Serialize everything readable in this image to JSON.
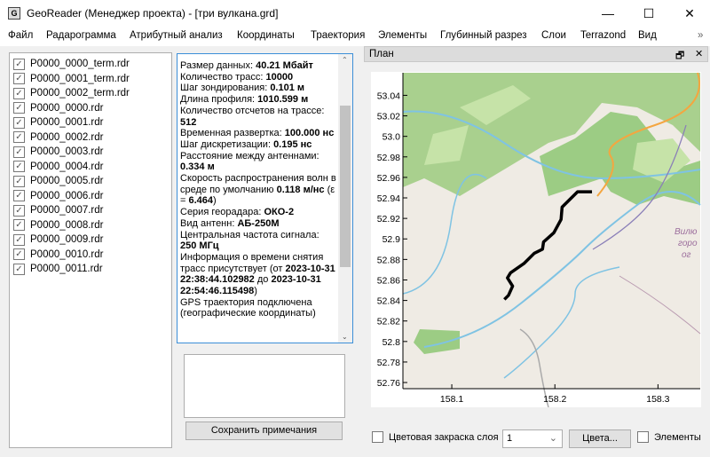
{
  "window": {
    "title": "GeoReader (Менеджер проекта) - [три вулкана.grd]",
    "icon": "G",
    "minimize": "—",
    "maximize": "☐",
    "close": "✕"
  },
  "menu": [
    "Файл",
    "Радарограмма",
    "Атрибутный анализ",
    "Координаты",
    "Траектория",
    "Элементы",
    "Глубинный разрез",
    "Слои",
    "Terrazond",
    "Вид"
  ],
  "menu_overflow": "»",
  "files": [
    "P0000_0000_term.rdr",
    "P0000_0001_term.rdr",
    "P0000_0002_term.rdr",
    "P0000_0000.rdr",
    "P0000_0001.rdr",
    "P0000_0002.rdr",
    "P0000_0003.rdr",
    "P0000_0004.rdr",
    "P0000_0005.rdr",
    "P0000_0006.rdr",
    "P0000_0007.rdr",
    "P0000_0008.rdr",
    "P0000_0009.rdr",
    "P0000_0010.rdr",
    "P0000_0011.rdr"
  ],
  "files_checked": true,
  "info": [
    {
      "t": "Размер данных: ",
      "b": "40.21 Мбайт"
    },
    {
      "t": "Количество трасс: ",
      "b": "10000"
    },
    {
      "t": "Шаг зондирования: ",
      "b": "0.101 м"
    },
    {
      "t": "Длина профиля: ",
      "b": "1010.599 м"
    },
    {
      "t": "Количество отсчетов на трассе: ",
      "b": "512"
    },
    {
      "t": "Временная развертка: ",
      "b": "100.000 нс"
    },
    {
      "t": "Шаг дискретизации: ",
      "b": "0.195 нс"
    },
    {
      "t": "Расстояние между антеннами: ",
      "b": "0.334 м"
    },
    {
      "t": "Скорость распространения волн в среде по умолчанию ",
      "b": "0.118 м/нс",
      "t2": " (ε = ",
      "b2": "6.464",
      "t3": ")"
    },
    {
      "t": "Серия георадара: ",
      "b": "ОКО-2"
    },
    {
      "t": "Вид антенн: ",
      "b": "АБ-250М"
    },
    {
      "t": "Центральная частота сигнала: ",
      "b": "250 МГц"
    },
    {
      "t": "Информация о времени снятия трасс присутствует (от ",
      "b": "2023-10-31 22:38:44.102982",
      "t2": " до ",
      "b2": "2023-10-31 22:54:46.115498",
      "t3": ")"
    },
    {
      "t": "GPS траектория подключена (географические координаты)"
    }
  ],
  "notes": {
    "value": ""
  },
  "save_button": "Сохранить примечания",
  "plan": {
    "title": "План",
    "restore_icon": "🗗",
    "close_icon": "✕",
    "map_label": [
      "Вилю",
      "горо",
      "ог"
    ],
    "x_ticks": [
      "158.1",
      "158.2",
      "158.3"
    ],
    "y_ticks": [
      "53.04",
      "53.02",
      "53.0",
      "52.98",
      "52.96",
      "52.94",
      "52.92",
      "52.9",
      "52.88",
      "52.86",
      "52.84",
      "52.82",
      "52.8",
      "52.78",
      "52.76"
    ],
    "xlim": [
      158.0526,
      158.341
    ],
    "ylim": [
      52.754,
      53.062
    ],
    "track_color": "#000000",
    "track": [
      [
        158.151,
        52.841
      ],
      [
        158.155,
        52.845
      ],
      [
        158.159,
        52.854
      ],
      [
        158.154,
        52.862
      ],
      [
        158.157,
        52.867
      ],
      [
        158.17,
        52.876
      ],
      [
        158.18,
        52.886
      ],
      [
        158.188,
        52.89
      ],
      [
        158.189,
        52.897
      ],
      [
        158.199,
        52.906
      ],
      [
        158.206,
        52.919
      ],
      [
        158.207,
        52.931
      ],
      [
        158.212,
        52.936
      ],
      [
        158.222,
        52.946
      ],
      [
        158.236,
        52.946
      ]
    ]
  },
  "bottom": {
    "layer_color_label": "Цветовая закраска слоя",
    "layer_color_checked": false,
    "layer_value": "1",
    "colors_button": "Цвета...",
    "elements_label": "Элементы",
    "elements_checked": false
  }
}
